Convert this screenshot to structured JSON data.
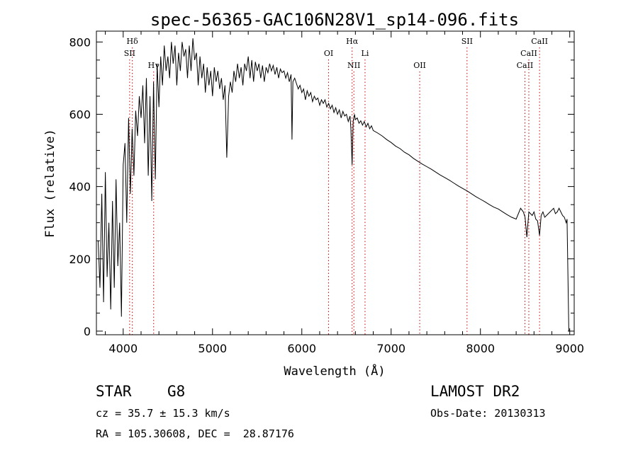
{
  "chart_data": {
    "type": "line",
    "title": "spec-56365-GAC106N28V1_sp14-096.fits",
    "xlabel": "Wavelength (Å)",
    "ylabel": "Flux (relative)",
    "xlim": [
      3700,
      9050
    ],
    "ylim": [
      -10,
      830
    ],
    "xticks": [
      4000,
      5000,
      6000,
      7000,
      8000,
      9000
    ],
    "yticks": [
      0,
      200,
      400,
      600,
      800
    ],
    "grid": false,
    "line_color": "#000000",
    "marker_color": "#cc0000",
    "series": [
      {
        "x": [
          3720,
          3740,
          3760,
          3780,
          3800,
          3820,
          3840,
          3860,
          3880,
          3900,
          3920,
          3940,
          3960,
          3980,
          4000,
          4020,
          4040,
          4060,
          4080,
          4100,
          4120,
          4140,
          4160,
          4180,
          4200,
          4220,
          4240,
          4260,
          4280,
          4300,
          4320,
          4340,
          4360,
          4380,
          4400,
          4420,
          4440,
          4460,
          4480,
          4500,
          4520,
          4540,
          4560,
          4580,
          4600,
          4620,
          4640,
          4660,
          4680,
          4700,
          4720,
          4740,
          4760,
          4780,
          4800,
          4820,
          4840,
          4860,
          4880,
          4900,
          4920,
          4940,
          4960,
          4980,
          5000,
          5020,
          5040,
          5060,
          5080,
          5100,
          5120,
          5140,
          5160,
          5170,
          5180,
          5200,
          5220,
          5240,
          5260,
          5280,
          5300,
          5320,
          5340,
          5360,
          5380,
          5400,
          5420,
          5440,
          5460,
          5480,
          5500,
          5520,
          5540,
          5560,
          5580,
          5600,
          5620,
          5640,
          5660,
          5680,
          5700,
          5720,
          5740,
          5760,
          5780,
          5800,
          5820,
          5840,
          5860,
          5880,
          5890,
          5900,
          5920,
          5940,
          5960,
          5980,
          6000,
          6020,
          6040,
          6060,
          6080,
          6100,
          6120,
          6140,
          6160,
          6180,
          6200,
          6220,
          6240,
          6260,
          6280,
          6300,
          6320,
          6340,
          6360,
          6380,
          6400,
          6420,
          6440,
          6460,
          6480,
          6500,
          6520,
          6540,
          6550,
          6563,
          6575,
          6590,
          6600,
          6620,
          6640,
          6660,
          6680,
          6700,
          6720,
          6740,
          6760,
          6780,
          6800,
          6850,
          6900,
          6950,
          7000,
          7050,
          7100,
          7150,
          7200,
          7250,
          7300,
          7350,
          7400,
          7450,
          7500,
          7550,
          7600,
          7650,
          7700,
          7750,
          7800,
          7850,
          7900,
          7950,
          8000,
          8050,
          8100,
          8150,
          8200,
          8250,
          8300,
          8350,
          8400,
          8450,
          8480,
          8500,
          8520,
          8542,
          8560,
          8580,
          8600,
          8620,
          8640,
          8662,
          8680,
          8700,
          8720,
          8740,
          8760,
          8780,
          8800,
          8820,
          8840,
          8860,
          8880,
          8900,
          8920,
          8940,
          8960,
          8970,
          8980,
          8990
        ],
        "y": [
          250,
          120,
          380,
          80,
          440,
          150,
          300,
          60,
          360,
          120,
          420,
          180,
          300,
          40,
          460,
          520,
          300,
          590,
          380,
          560,
          430,
          610,
          540,
          650,
          590,
          680,
          520,
          700,
          430,
          650,
          360,
          690,
          420,
          740,
          620,
          760,
          680,
          790,
          720,
          760,
          700,
          800,
          740,
          790,
          680,
          770,
          720,
          800,
          760,
          780,
          700,
          790,
          720,
          810,
          750,
          770,
          680,
          760,
          700,
          740,
          660,
          730,
          680,
          720,
          650,
          730,
          690,
          720,
          670,
          700,
          640,
          680,
          480,
          560,
          650,
          690,
          660,
          720,
          690,
          740,
          700,
          730,
          680,
          740,
          720,
          760,
          700,
          750,
          690,
          745,
          720,
          740,
          700,
          735,
          690,
          730,
          715,
          740,
          720,
          735,
          710,
          730,
          700,
          725,
          715,
          720,
          700,
          715,
          690,
          710,
          530,
          690,
          700,
          685,
          670,
          680,
          660,
          670,
          640,
          665,
          650,
          660,
          635,
          650,
          640,
          645,
          625,
          640,
          630,
          640,
          620,
          630,
          615,
          625,
          605,
          618,
          600,
          612,
          590,
          608,
          595,
          600,
          580,
          595,
          560,
          460,
          580,
          600,
          585,
          590,
          575,
          582,
          570,
          580,
          565,
          575,
          560,
          568,
          555,
          548,
          540,
          530,
          522,
          512,
          505,
          495,
          488,
          478,
          470,
          462,
          455,
          448,
          440,
          432,
          425,
          418,
          410,
          402,
          395,
          388,
          380,
          372,
          365,
          358,
          350,
          343,
          338,
          330,
          322,
          315,
          310,
          340,
          330,
          315,
          260,
          330,
          325,
          320,
          330,
          310,
          305,
          265,
          320,
          330,
          315,
          320,
          325,
          330,
          335,
          340,
          325,
          330,
          340,
          330,
          320,
          315,
          300,
          310,
          150,
          0
        ]
      }
    ],
    "markers": [
      {
        "label": "Hδ",
        "x": 4102,
        "level": 1
      },
      {
        "label": "SII",
        "x": 4072,
        "level": 2
      },
      {
        "label": "Hγ",
        "x": 4341,
        "level": 3
      },
      {
        "label": "OI",
        "x": 6300,
        "level": 2
      },
      {
        "label": "Hα",
        "x": 6563,
        "level": 1
      },
      {
        "label": "NII",
        "x": 6583,
        "level": 3
      },
      {
        "label": "Li",
        "x": 6708,
        "level": 2
      },
      {
        "label": "OII",
        "x": 7320,
        "level": 3
      },
      {
        "label": "SII",
        "x": 7850,
        "level": 1
      },
      {
        "label": "CaII",
        "x": 8498,
        "level": 3
      },
      {
        "label": "CaII",
        "x": 8542,
        "level": 2
      },
      {
        "label": "CaII",
        "x": 8662,
        "level": 1
      }
    ]
  },
  "info": {
    "object_class": "STAR",
    "subclass": "G8",
    "survey": "LAMOST DR2",
    "cz": "cz = 35.7 ± 15.3 km/s",
    "obs_date": "Obs-Date: 20130313",
    "coords": "RA = 105.30608, DEC =  28.87176"
  }
}
